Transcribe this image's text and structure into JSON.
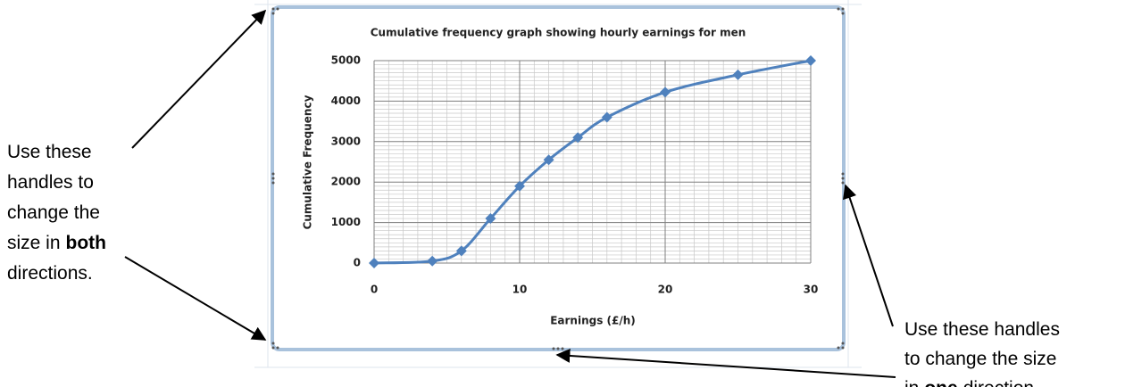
{
  "chart_data": {
    "type": "line",
    "title": "Cumulative frequency graph showing hourly earnings for men",
    "x_label": "Earnings (£/h)",
    "y_label": "Cumulative Frequency",
    "x": [
      0,
      4,
      6,
      8,
      10,
      12,
      14,
      16,
      20,
      25,
      30
    ],
    "series": [
      {
        "name": "Cumulative Frequency",
        "color": "#4f81bd",
        "values": [
          0,
          50,
          300,
          1100,
          1900,
          2550,
          3100,
          3600,
          4220,
          4650,
          5000
        ]
      }
    ],
    "xlim": [
      0,
      30
    ],
    "xticks": [
      0,
      10,
      20,
      30
    ],
    "ylim": [
      0,
      5000
    ],
    "yticks": [
      0,
      1000,
      2000,
      3000,
      4000,
      5000
    ],
    "grid": true,
    "minor_grid": {
      "x": 1,
      "y": 100
    }
  },
  "left_note": [
    [
      "Use these"
    ],
    [
      "handles to"
    ],
    [
      "change the"
    ],
    [
      "size in",
      "both"
    ],
    [
      "directions."
    ]
  ],
  "right_note": [
    [
      "Use these handles"
    ],
    [
      "to change the size"
    ],
    [
      "in",
      "one",
      "direction."
    ]
  ]
}
